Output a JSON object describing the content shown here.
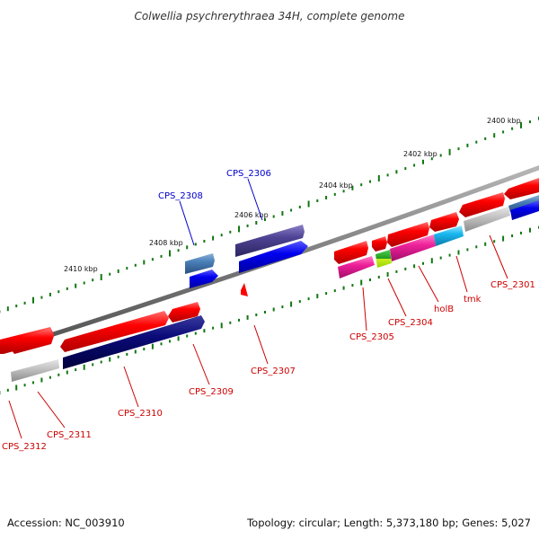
{
  "title": "Colwellia psychrerythraea 34H, complete genome",
  "footer": {
    "accession": "Accession: NC_003910",
    "summary": "Topology: circular; Length: 5,373,180 bp; Genes: 5,027"
  },
  "scale_labels": [
    "2400 kbp",
    "2402 kbp",
    "2404 kbp",
    "2406 kbp",
    "2408 kbp",
    "2410 kbp"
  ],
  "genes": [
    {
      "name": "CPS_2301",
      "color": "#ff0000",
      "track": "forward"
    },
    {
      "name": "tmk",
      "color": "#ff0000",
      "track": "reverse"
    },
    {
      "name": "holB",
      "color": "#ff0000",
      "track": "reverse"
    },
    {
      "name": "CPS_2304",
      "color": "#ff0000",
      "track": "reverse"
    },
    {
      "name": "CPS_2305",
      "color": "#ff0000",
      "track": "reverse"
    },
    {
      "name": "CPS_2306",
      "color": "#0000cc",
      "track": "forward"
    },
    {
      "name": "CPS_2307",
      "color": "#ff0000",
      "track": "reverse"
    },
    {
      "name": "CPS_2308",
      "color": "#0000cc",
      "track": "forward"
    },
    {
      "name": "CPS_2309",
      "color": "#ff0000",
      "track": "forward"
    },
    {
      "name": "CPS_2310",
      "color": "#ff0000",
      "track": "reverse"
    },
    {
      "name": "CPS_2311",
      "color": "#ff0000",
      "track": "reverse"
    },
    {
      "name": "CPS_2312",
      "color": "#ff0000",
      "track": "reverse"
    }
  ],
  "colors": {
    "backbone": "#808080",
    "forward_red": "#ff1010",
    "gc_green": "#117711",
    "gene_label_red": "#cc0000",
    "gene_label_blue": "#0000cc"
  }
}
